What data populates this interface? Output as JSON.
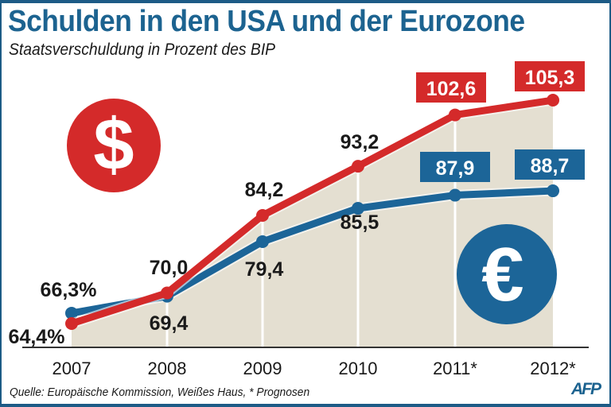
{
  "header": {
    "title": "Schulden in den USA und der Eurozone",
    "subtitle": "Staatsverschuldung in Prozent des BIP"
  },
  "footer": {
    "source": "Quelle: Europäische Kommission, Weißes Haus, * Prognosen",
    "logo": "AFP"
  },
  "icons": {
    "usa": "dollar-icon",
    "eurozone": "euro-icon"
  },
  "colors": {
    "usa": "#d42a2a",
    "eurozone": "#1c6598",
    "area": "#e4dfd1",
    "title": "#1c6390"
  },
  "chart_data": {
    "type": "line",
    "title": "Schulden in den USA und der Eurozone",
    "subtitle": "Staatsverschuldung in Prozent des BIP",
    "xlabel": "",
    "ylabel": "",
    "categories": [
      "2007",
      "2008",
      "2009",
      "2010",
      "2011*",
      "2012*"
    ],
    "series": [
      {
        "name": "USA",
        "icon": "dollar-icon",
        "color": "#d42a2a",
        "values": [
          64.4,
          70.0,
          84.2,
          93.2,
          102.6,
          105.3
        ],
        "labels": [
          "64,4%",
          "70,0",
          "84,2",
          "93,2",
          "102,6",
          "105,3"
        ],
        "boxed_labels": [
          false,
          false,
          false,
          false,
          true,
          true
        ]
      },
      {
        "name": "Eurozone",
        "icon": "euro-icon",
        "color": "#1c6598",
        "values": [
          66.3,
          69.4,
          79.4,
          85.5,
          87.9,
          88.7
        ],
        "labels": [
          "66,3%",
          "69,4",
          "79,4",
          "85,5",
          "87,9",
          "88,7"
        ],
        "boxed_labels": [
          false,
          false,
          false,
          false,
          true,
          true
        ]
      }
    ],
    "forecast_note": "* Prognosen",
    "grid": false,
    "legend": "none (currency icons)"
  }
}
